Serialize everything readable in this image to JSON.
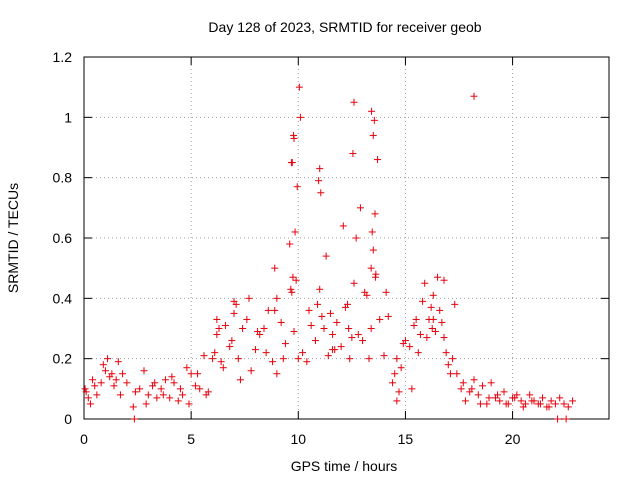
{
  "chart_data": {
    "type": "scatter",
    "title": "Day 128 of 2023, SRMTID for receiver geob",
    "xlabel": "GPS time / hours",
    "ylabel": "SRMTID / TECUs",
    "xlim": [
      0,
      24.5
    ],
    "ylim": [
      0,
      1.2
    ],
    "xticks": [
      0,
      5,
      10,
      15,
      20
    ],
    "yticks": [
      0,
      0.2,
      0.4,
      0.6,
      0.8,
      1.0,
      1.2
    ],
    "xtick_labels": [
      "0",
      "5",
      "10",
      "15",
      "20"
    ],
    "ytick_labels": [
      "0",
      "0.2",
      "0.4",
      "0.6",
      "0.8",
      "1",
      "1.2"
    ],
    "grid": true,
    "marker": "+",
    "color": "#e8000b",
    "series": [
      {
        "name": "SRMTID",
        "x": [
          0.05,
          0.2,
          0.4,
          0.6,
          0.8,
          1.0,
          1.2,
          1.4,
          1.6,
          1.8,
          2.0,
          2.3,
          2.6,
          2.8,
          3.0,
          3.2,
          3.4,
          3.6,
          3.8,
          4.0,
          4.2,
          4.4,
          4.6,
          4.8,
          5.0,
          5.2,
          5.4,
          5.6,
          5.8,
          6.0,
          6.2,
          6.4,
          6.6,
          6.8,
          7.0,
          7.2,
          7.4,
          7.6,
          7.8,
          8.0,
          8.2,
          8.4,
          8.6,
          8.8,
          9.0,
          9.2,
          9.4,
          9.6,
          9.7,
          9.8,
          9.9,
          10.0,
          10.2,
          10.4,
          10.6,
          10.8,
          11.0,
          11.2,
          11.4,
          11.6,
          11.8,
          12.0,
          12.2,
          12.4,
          12.6,
          12.8,
          13.0,
          13.2,
          13.4,
          13.5,
          13.6,
          13.8,
          14.0,
          14.2,
          14.4,
          14.6,
          14.8,
          15.0,
          15.2,
          15.4,
          15.6,
          15.8,
          16.0,
          16.2,
          16.4,
          16.6,
          16.8,
          17.0,
          17.2,
          17.4,
          17.6,
          17.8,
          18.0,
          18.2,
          18.4,
          18.6,
          18.8,
          19.0,
          19.2,
          19.4,
          19.6,
          19.8,
          20.0,
          20.2,
          20.4,
          20.6,
          20.8,
          21.0,
          21.2,
          21.4,
          21.6,
          21.8,
          22.0,
          22.2,
          22.4,
          22.6,
          22.8,
          0.1,
          0.3,
          0.5,
          0.9,
          1.1,
          1.3,
          1.5,
          1.7,
          2.4,
          2.9,
          3.3,
          3.7,
          4.1,
          4.5,
          4.9,
          5.3,
          5.7,
          6.1,
          6.5,
          6.9,
          7.3,
          7.7,
          8.1,
          8.5,
          8.9,
          9.3,
          9.65,
          9.75,
          9.85,
          9.95,
          10.1,
          10.5,
          10.9,
          11.1,
          11.3,
          11.7,
          12.1,
          12.5,
          12.7,
          12.9,
          13.1,
          13.3,
          13.45,
          13.55,
          13.7,
          14.1,
          14.5,
          14.9,
          15.3,
          15.7,
          16.1,
          16.3,
          16.5,
          16.7,
          16.9,
          17.3,
          17.7,
          18.1,
          18.5,
          18.9,
          19.3,
          19.7,
          20.1,
          20.5,
          20.9,
          21.3,
          21.7,
          22.1,
          22.5,
          2.35,
          10.05,
          18.2,
          9.72,
          9.78,
          9.8,
          9.68,
          11.05,
          11.0,
          10.95,
          12.55,
          12.6,
          13.42,
          13.5,
          13.58,
          13.62,
          13.4,
          16.3,
          16.25,
          15.5,
          15.9,
          7.0,
          7.1,
          6.3,
          6.2,
          8.9,
          9.0,
          11.5,
          11.6,
          12.3,
          12.35,
          14.6,
          14.7,
          16.8,
          17.1
        ],
        "y": [
          0.1,
          0.07,
          0.13,
          0.08,
          0.12,
          0.16,
          0.14,
          0.11,
          0.19,
          0.15,
          0.12,
          0.04,
          0.1,
          0.16,
          0.08,
          0.11,
          0.07,
          0.1,
          0.13,
          0.07,
          0.12,
          0.06,
          0.08,
          0.17,
          0.15,
          0.11,
          0.1,
          0.21,
          0.09,
          0.2,
          0.28,
          0.19,
          0.31,
          0.24,
          0.35,
          0.2,
          0.3,
          0.33,
          0.16,
          0.23,
          0.28,
          0.3,
          0.36,
          0.19,
          0.15,
          0.32,
          0.25,
          0.58,
          0.42,
          0.29,
          0.46,
          0.2,
          0.22,
          0.19,
          0.31,
          0.26,
          0.43,
          0.3,
          0.21,
          0.28,
          0.32,
          0.24,
          0.37,
          0.2,
          0.45,
          0.28,
          0.26,
          0.41,
          0.3,
          0.56,
          0.47,
          0.33,
          0.21,
          0.34,
          0.12,
          0.2,
          0.17,
          0.26,
          0.24,
          0.31,
          0.22,
          0.39,
          0.27,
          0.37,
          0.29,
          0.36,
          0.27,
          0.18,
          0.2,
          0.15,
          0.1,
          0.06,
          0.09,
          0.13,
          0.08,
          0.11,
          0.05,
          0.12,
          0.07,
          0.06,
          0.09,
          0.05,
          0.07,
          0.08,
          0.06,
          0.05,
          0.08,
          0.06,
          0.05,
          0.07,
          0.04,
          0.06,
          0.05,
          0.07,
          0.05,
          0.04,
          0.06,
          0.09,
          0.05,
          0.11,
          0.18,
          0.2,
          0.15,
          0.13,
          0.08,
          0.09,
          0.05,
          0.12,
          0.08,
          0.14,
          0.1,
          0.05,
          0.15,
          0.08,
          0.22,
          0.17,
          0.26,
          0.13,
          0.4,
          0.29,
          0.22,
          0.36,
          0.2,
          0.43,
          0.47,
          0.62,
          0.77,
          1.0,
          0.36,
          0.38,
          0.34,
          0.54,
          0.23,
          0.64,
          0.27,
          0.6,
          0.7,
          0.42,
          0.2,
          0.62,
          0.99,
          0.86,
          0.42,
          0.15,
          0.25,
          0.1,
          0.28,
          0.33,
          0.41,
          0.47,
          0.32,
          0.22,
          0.38,
          0.12,
          0.1,
          0.05,
          0.07,
          0.08,
          0.05,
          0.07,
          0.04,
          0.06,
          0.05,
          0.04,
          0.0,
          0.0,
          0.0,
          1.1,
          1.07,
          0.85,
          0.94,
          0.93,
          0.85,
          0.75,
          0.83,
          0.79,
          0.88,
          1.05,
          1.02,
          0.94,
          0.68,
          0.48,
          0.5,
          0.33,
          0.3,
          0.33,
          0.45,
          0.39,
          0.38,
          0.3,
          0.33,
          0.5,
          0.4,
          0.35,
          0.23,
          0.38,
          0.3,
          0.06,
          0.09,
          0.46,
          0.15
        ]
      }
    ]
  }
}
